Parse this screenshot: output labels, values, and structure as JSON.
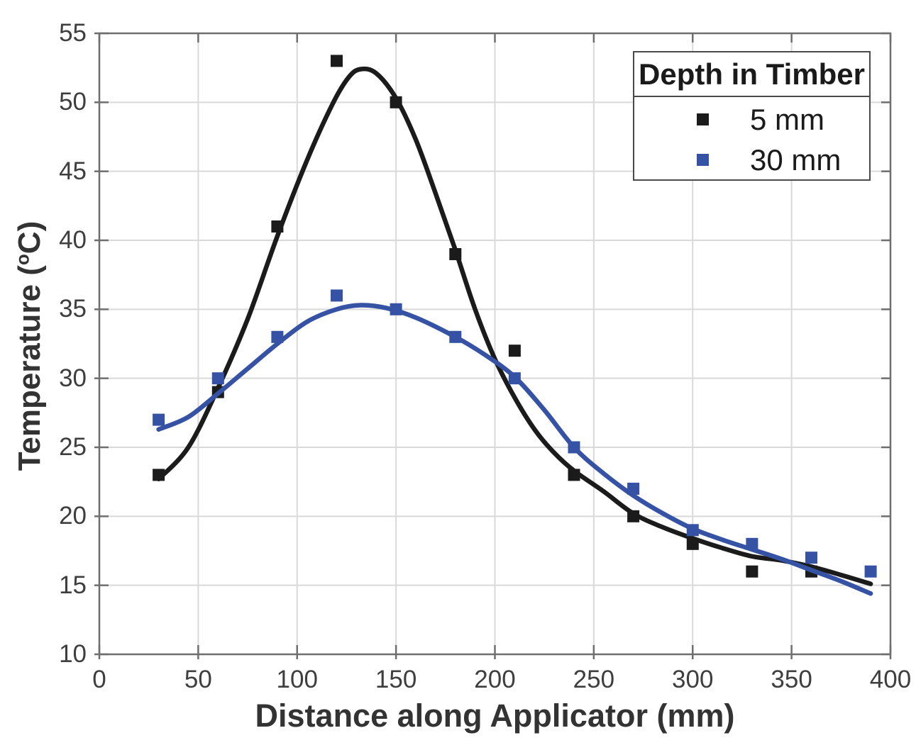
{
  "chart_data": {
    "type": "scatter",
    "title": "",
    "xlabel": "Distance along Applicator (mm)",
    "ylabel": "Temperature (°C)",
    "ylabel_parts": {
      "prefix": "Temperature (",
      "sup": "o",
      "suffix": "C)"
    },
    "xlim": [
      0,
      400
    ],
    "ylim": [
      10,
      55
    ],
    "x_ticks": [
      0,
      50,
      100,
      150,
      200,
      250,
      300,
      350,
      400
    ],
    "y_ticks": [
      10,
      15,
      20,
      25,
      30,
      35,
      40,
      45,
      50,
      55
    ],
    "grid": true,
    "legend": {
      "title": "Depth in Timber",
      "position": "top-right"
    },
    "colors": {
      "grid": "#d9d9d9",
      "axis": "#6e6e6e",
      "tick_text": "#3e3e3e",
      "label_text": "#333333",
      "background": "#ffffff"
    },
    "series": [
      {
        "name": "5 mm",
        "color": "#1b1b1b",
        "marker": "square",
        "x": [
          30,
          60,
          90,
          120,
          150,
          180,
          210,
          240,
          270,
          300,
          330,
          360
        ],
        "y": [
          23,
          29,
          41,
          53,
          50,
          39,
          32,
          23,
          20,
          18,
          16,
          16
        ],
        "fit_x": [
          30,
          45,
          60,
          75,
          90,
          105,
          118,
          126,
          132,
          140,
          150,
          160,
          170,
          180,
          190,
          200,
          210,
          220,
          230,
          240,
          255,
          270,
          285,
          300,
          315,
          330,
          345,
          360,
          375,
          390
        ],
        "fit_y": [
          22.7,
          25.0,
          29.3,
          34.3,
          40.3,
          45.8,
          49.9,
          51.8,
          52.4,
          52.1,
          50.3,
          47.3,
          43.4,
          39.3,
          35.0,
          31.4,
          28.6,
          26.3,
          24.6,
          23.3,
          21.8,
          20.2,
          19.2,
          18.4,
          17.7,
          17.1,
          16.8,
          16.35,
          15.75,
          15.1
        ]
      },
      {
        "name": "30 mm",
        "color": "#3552a4",
        "marker": "square",
        "x": [
          30,
          60,
          90,
          120,
          150,
          180,
          210,
          240,
          270,
          300,
          330,
          360,
          390
        ],
        "y": [
          27,
          30,
          33,
          36,
          35,
          33,
          30,
          25,
          22,
          19,
          18,
          17,
          16
        ],
        "fit_x": [
          30,
          45,
          60,
          75,
          90,
          105,
          120,
          132,
          145,
          160,
          180,
          195,
          210,
          225,
          240,
          255,
          270,
          285,
          300,
          315,
          330,
          345,
          360,
          375,
          390
        ],
        "fit_y": [
          26.3,
          27.2,
          28.9,
          30.7,
          32.5,
          34.1,
          35.0,
          35.3,
          35.1,
          34.4,
          33.0,
          31.7,
          30.1,
          27.7,
          25.0,
          23.1,
          21.5,
          20.2,
          19.1,
          18.3,
          17.6,
          16.9,
          16.1,
          15.3,
          14.4
        ]
      }
    ]
  }
}
